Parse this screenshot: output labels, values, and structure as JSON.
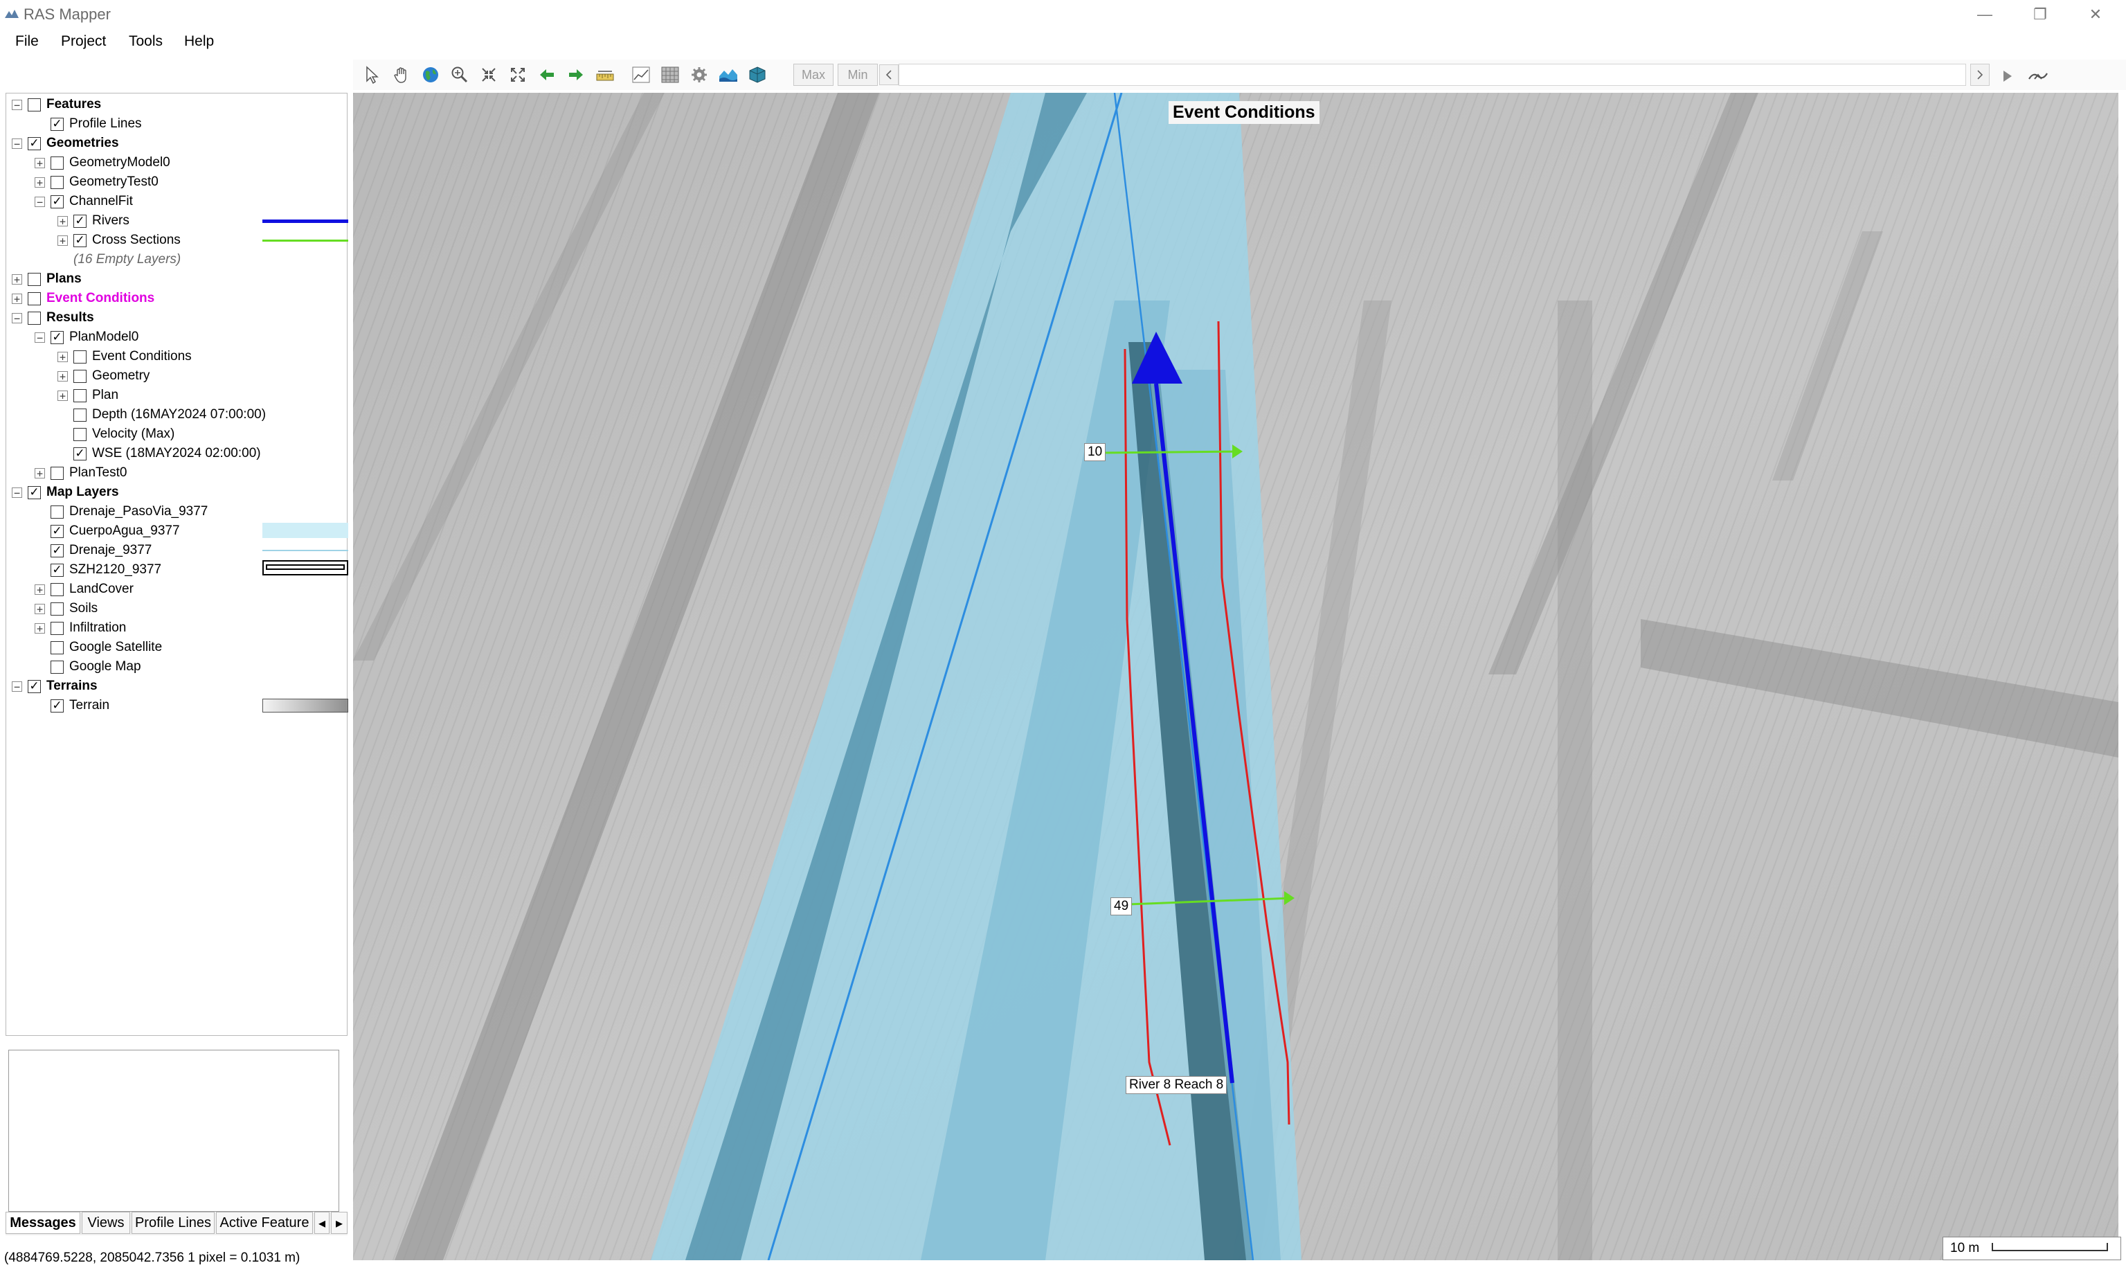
{
  "window": {
    "title": "RAS Mapper",
    "minimize_label": "—",
    "restore_label": "❐",
    "close_label": "✕"
  },
  "menu": [
    "File",
    "Project",
    "Tools",
    "Help"
  ],
  "toolbar": {
    "max_label": "Max",
    "min_label": "Min"
  },
  "tree": [
    {
      "label": "Features",
      "expander": "-",
      "checked": false,
      "bold": true
    },
    {
      "label": "Profile Lines",
      "checked": true
    },
    {
      "label": "Geometries",
      "expander": "-",
      "checked": true,
      "bold": true
    },
    {
      "label": "GeometryModel0",
      "expander": "+",
      "checked": false
    },
    {
      "label": "GeometryTest0",
      "expander": "+",
      "checked": false
    },
    {
      "label": "ChannelFit",
      "expander": "-",
      "checked": true
    },
    {
      "label": "Rivers",
      "expander": "+",
      "checked": true
    },
    {
      "label": "Cross Sections",
      "expander": "+",
      "checked": true
    },
    {
      "label": "(16 Empty Layers)"
    },
    {
      "label": "Plans",
      "expander": "+",
      "checked": false,
      "bold": true
    },
    {
      "label": "Event Conditions",
      "expander": "+",
      "checked": false
    },
    {
      "label": "Results",
      "expander": "-",
      "checked": false,
      "bold": true
    },
    {
      "label": "PlanModel0",
      "expander": "-",
      "checked": true
    },
    {
      "label": "Event Conditions",
      "expander": "+",
      "checked": false
    },
    {
      "label": "Geometry",
      "expander": "+",
      "checked": false
    },
    {
      "label": "Plan",
      "expander": "+",
      "checked": false
    },
    {
      "label": "Depth (16MAY2024 07:00:00)",
      "checked": false
    },
    {
      "label": "Velocity (Max)",
      "checked": false
    },
    {
      "label": "WSE (18MAY2024 02:00:00)",
      "checked": true
    },
    {
      "label": "PlanTest0",
      "expander": "+",
      "checked": false
    },
    {
      "label": "Map Layers",
      "expander": "-",
      "checked": true,
      "bold": true
    },
    {
      "label": "Drenaje_PasoVia_9377",
      "checked": false
    },
    {
      "label": "CuerpoAgua_9377",
      "checked": true
    },
    {
      "label": "Drenaje_9377",
      "checked": true
    },
    {
      "label": "SZH2120_9377",
      "checked": true
    },
    {
      "label": "LandCover",
      "expander": "+",
      "checked": false
    },
    {
      "label": "Soils",
      "expander": "+",
      "checked": false
    },
    {
      "label": "Infiltration",
      "expander": "+",
      "checked": false
    },
    {
      "label": "Google Satellite",
      "checked": false
    },
    {
      "label": "Google Map",
      "checked": false
    },
    {
      "label": "Terrains",
      "expander": "-",
      "checked": true,
      "bold": true
    },
    {
      "label": "Terrain",
      "checked": true
    }
  ],
  "tabs": [
    "Messages",
    "Views",
    "Profile Lines",
    "Active Feature"
  ],
  "status": {
    "coords": "(4884769.5228, 2085042.7356  1 pixel = 0.1031 m)"
  },
  "map": {
    "overlay_title": "Event Conditions",
    "xs_labels": [
      "10",
      "49"
    ],
    "river_label": "River 8 Reach 8",
    "scale_label": "10 m"
  },
  "colors": {
    "river": "#1010e0",
    "cross_section": "#66dd22",
    "bank": "#e02020",
    "water_light": "#9fd3e6",
    "water_dark": "#4d8ea8",
    "event_conditions": "#e000e0"
  }
}
